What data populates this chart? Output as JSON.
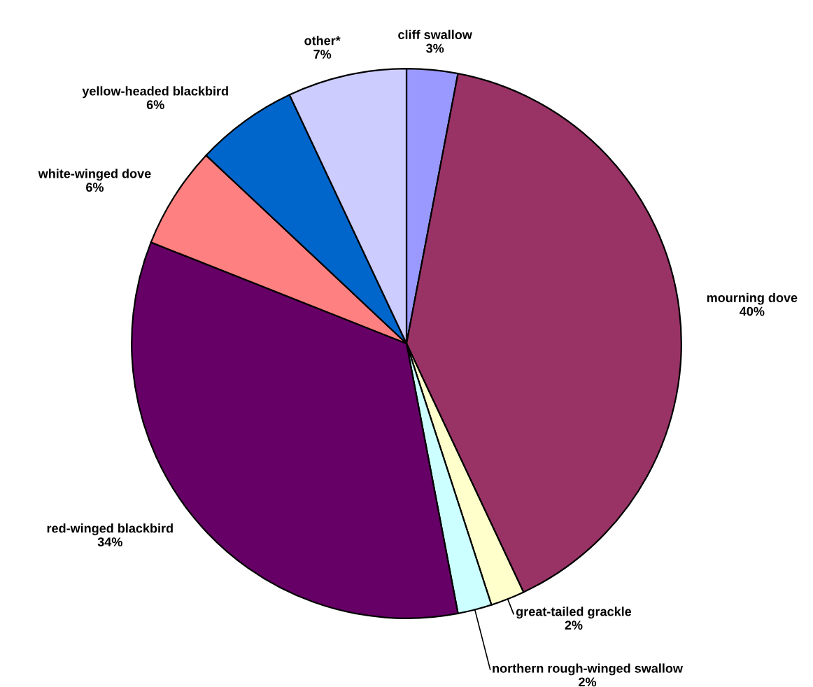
{
  "chart_data": {
    "type": "pie",
    "categories": [
      "cliff swallow",
      "mourning dove",
      "great-tailed grackle",
      "northern rough-winged swallow",
      "red-winged blackbird",
      "white-winged dove",
      "yellow-headed blackbird",
      "other*"
    ],
    "values": [
      3,
      40,
      2,
      2,
      34,
      6,
      6,
      7
    ],
    "value_labels": [
      "3%",
      "40%",
      "2%",
      "2%",
      "34%",
      "6%",
      "6%",
      "7%"
    ],
    "colors": [
      "#9999ff",
      "#993366",
      "#ffffcc",
      "#ccffff",
      "#660066",
      "#ff8080",
      "#0066cc",
      "#ccccff"
    ],
    "legend": false
  }
}
